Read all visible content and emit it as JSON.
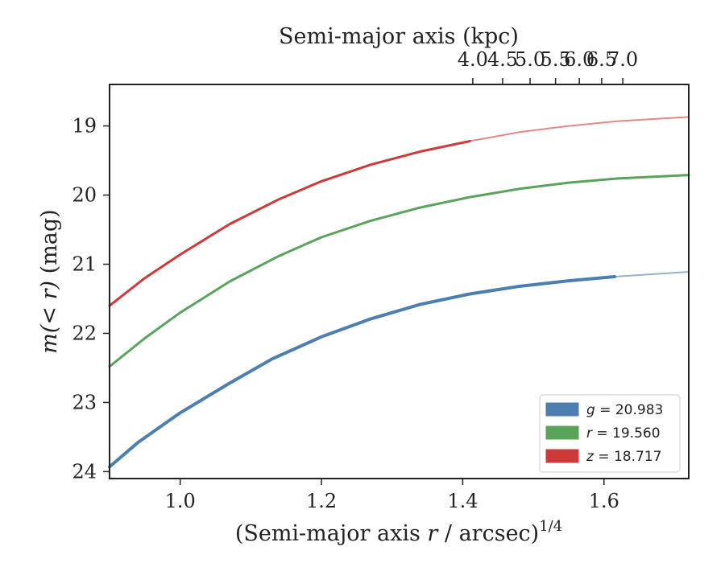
{
  "chart_data": {
    "type": "line",
    "title": "",
    "xlabel": "(Semi-major axis r / arcsec)^{1/4}",
    "xlabel_parts": {
      "prefix": "(Semi-major axis ",
      "var": "r",
      "mid": " / arcsec)",
      "sup": "1/4"
    },
    "ylabel": "m(<r) (mag)",
    "ylabel_parts": {
      "math": "m(< r)",
      "unit": " (mag)"
    },
    "top_xlabel": "Semi-major axis (kpc)",
    "xlim": [
      0.9,
      1.72
    ],
    "ylim": [
      24.1,
      18.4
    ],
    "y_inverted": true,
    "x_ticks": [
      1.0,
      1.2,
      1.4,
      1.6
    ],
    "x_tick_labels": [
      "1.0",
      "1.2",
      "1.4",
      "1.6"
    ],
    "y_ticks": [
      19,
      20,
      21,
      22,
      23,
      24
    ],
    "y_tick_labels": [
      "19",
      "20",
      "21",
      "22",
      "23",
      "24"
    ],
    "top_x_ticks": [
      4.0,
      4.5,
      5.0,
      5.5,
      6.0,
      6.5,
      7.0
    ],
    "top_x_tick_labels": [
      "4.0",
      "4.5",
      "5.0",
      "5.5",
      "6.0",
      "6.5",
      "7.0"
    ],
    "top_axis_scale": "x^4 (kpc)",
    "grid": false,
    "legend_position": "bottom-right",
    "series": [
      {
        "name": "g = 20.983",
        "legend_var": "g",
        "legend_value": "= 20.983",
        "color": "#4c7fb0",
        "solid_until": 1.615,
        "x": [
          0.9,
          0.94,
          1.0,
          1.07,
          1.13,
          1.2,
          1.27,
          1.34,
          1.41,
          1.48,
          1.55,
          1.615,
          1.72
        ],
        "y": [
          23.93,
          23.58,
          23.15,
          22.72,
          22.37,
          22.05,
          21.79,
          21.58,
          21.43,
          21.32,
          21.24,
          21.18,
          21.11
        ]
      },
      {
        "name": "r = 19.560",
        "legend_var": "r",
        "legend_value": "= 19.560",
        "color": "#5aa35a",
        "solid_until": 1.72,
        "x": [
          0.9,
          0.95,
          1.0,
          1.07,
          1.14,
          1.2,
          1.27,
          1.34,
          1.41,
          1.48,
          1.55,
          1.62,
          1.72
        ],
        "y": [
          22.48,
          22.07,
          21.7,
          21.25,
          20.88,
          20.61,
          20.37,
          20.18,
          20.03,
          19.91,
          19.82,
          19.76,
          19.71
        ]
      },
      {
        "name": "z = 18.717",
        "legend_var": "z",
        "legend_value": "= 18.717",
        "color": "#cc3a3a",
        "solid_until": 1.41,
        "x": [
          0.9,
          0.95,
          1.0,
          1.07,
          1.14,
          1.2,
          1.27,
          1.34,
          1.41,
          1.48,
          1.55,
          1.62,
          1.72
        ],
        "y": [
          21.6,
          21.2,
          20.86,
          20.42,
          20.06,
          19.8,
          19.56,
          19.37,
          19.22,
          19.09,
          19.0,
          18.93,
          18.87
        ]
      }
    ]
  }
}
